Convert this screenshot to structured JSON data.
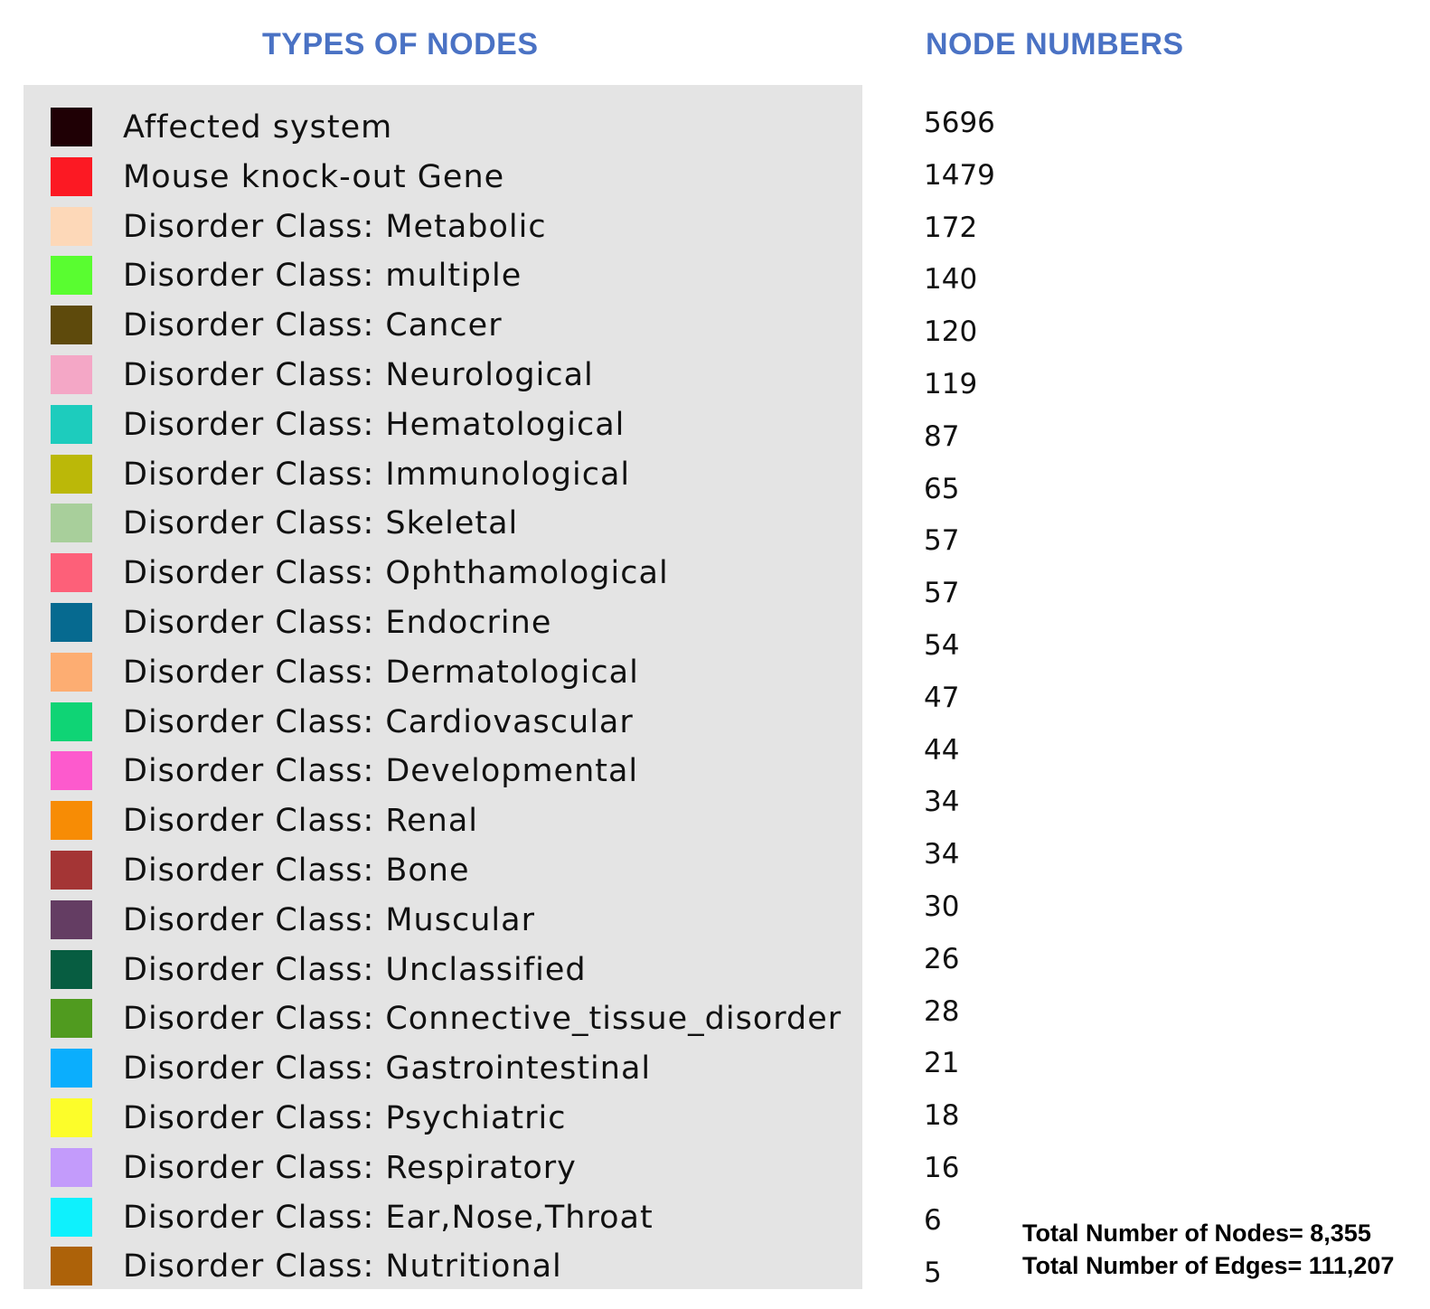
{
  "headings": {
    "types": "TYPES OF NODES",
    "numbers": "NODE NUMBERS"
  },
  "legend": [
    {
      "label": "Affected system",
      "color": "#1f0005",
      "count": "5696"
    },
    {
      "label": "Mouse knock-out Gene",
      "color": "#fc1923",
      "count": "1479"
    },
    {
      "label": "Disorder Class: Metabolic",
      "color": "#fdd8b8",
      "count": "172"
    },
    {
      "label": "Disorder Class: multiple",
      "color": "#59fd30",
      "count": "140"
    },
    {
      "label": "Disorder Class: Cancer",
      "color": "#5e4a0c",
      "count": "120"
    },
    {
      "label": "Disorder Class: Neurological",
      "color": "#f4a7c6",
      "count": "119"
    },
    {
      "label": "Disorder Class: Hematological",
      "color": "#1dccbd",
      "count": "87"
    },
    {
      "label": "Disorder Class: Immunological",
      "color": "#bbb808",
      "count": "65"
    },
    {
      "label": "Disorder Class: Skeletal",
      "color": "#a8cf9b",
      "count": "57"
    },
    {
      "label": "Disorder Class: Ophthamological",
      "color": "#fd6079",
      "count": "57"
    },
    {
      "label": "Disorder Class: Endocrine",
      "color": "#066a90",
      "count": "54"
    },
    {
      "label": "Disorder Class: Dermatological",
      "color": "#fdad72",
      "count": "47"
    },
    {
      "label": "Disorder Class: Cardiovascular",
      "color": "#0fd475",
      "count": "44"
    },
    {
      "label": "Disorder Class: Developmental",
      "color": "#fd5acd",
      "count": "34"
    },
    {
      "label": "Disorder Class: Renal",
      "color": "#f78c05",
      "count": "34"
    },
    {
      "label": "Disorder Class: Bone",
      "color": "#a43535",
      "count": "30"
    },
    {
      "label": "Disorder Class: Muscular",
      "color": "#643d63",
      "count": "26"
    },
    {
      "label": "Disorder Class: Unclassified",
      "color": "#075d41",
      "count": "28"
    },
    {
      "label": "Disorder Class: Connective_tissue_disorder",
      "color": "#509b1f",
      "count": "21"
    },
    {
      "label": "Disorder Class: Gastrointestinal",
      "color": "#0baefd",
      "count": "18"
    },
    {
      "label": "Disorder Class: Psychiatric",
      "color": "#fcfd2a",
      "count": "16"
    },
    {
      "label": "Disorder Class: Respiratory",
      "color": "#c39bfb",
      "count": "6"
    },
    {
      "label": "Disorder Class: Ear,Nose,Throat",
      "color": "#0ef1fd",
      "count": "5"
    },
    {
      "label": "Disorder Class: Nutritional",
      "color": "#ad6209",
      "count": ""
    }
  ],
  "totals": {
    "nodes": "Total Number of Nodes= 8,355",
    "edges": "Total Number of Edges= 111,207"
  }
}
